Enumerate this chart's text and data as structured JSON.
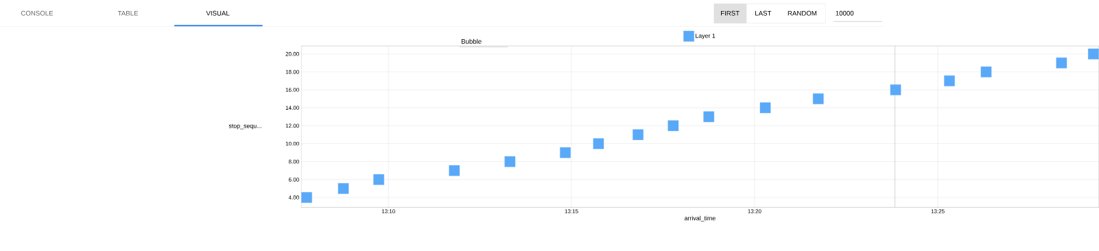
{
  "chart_data": {
    "type": "scatter",
    "xlabel": "arrival_time",
    "ylabel": "stop_sequ...",
    "annotations": [
      "CONSOLE",
      "TABLE",
      "VISUAL",
      "FIRST",
      "LAST",
      "RANDOM",
      "10000",
      "Bubble"
    ],
    "x": [
      13.1295,
      13.1462,
      13.1623,
      13.1967,
      13.222,
      13.2472,
      13.2623,
      13.2803,
      13.2963,
      13.3125,
      13.3382,
      13.3623,
      13.3975,
      13.422,
      13.4387,
      13.473,
      13.4875
    ],
    "series": [
      {
        "name": "Layer 1",
        "color": "#5aa9f8",
        "values": [
          4,
          5,
          6,
          7,
          8,
          9,
          10,
          11,
          12,
          13,
          14,
          15,
          16,
          17,
          18,
          19,
          20
        ]
      }
    ],
    "xlim": [
      13.127,
      13.49
    ],
    "ylim": [
      2.9,
      20.9
    ],
    "xticks": [
      {
        "value": 13.1667,
        "label": "13:10"
      },
      {
        "value": 13.25,
        "label": "13:15"
      },
      {
        "value": 13.3333,
        "label": "13:20"
      },
      {
        "value": 13.4167,
        "label": "13:25"
      }
    ],
    "yticks": [
      {
        "value": 4,
        "label": "4.00"
      },
      {
        "value": 6,
        "label": "6.00"
      },
      {
        "value": 8,
        "label": "8.00"
      },
      {
        "value": 10,
        "label": "10.00"
      },
      {
        "value": 12,
        "label": "12.00"
      },
      {
        "value": 14,
        "label": "14.00"
      },
      {
        "value": 16,
        "label": "16.00"
      },
      {
        "value": 18,
        "label": "18.00"
      },
      {
        "value": 20,
        "label": "20.00"
      }
    ],
    "ref_lines": [
      {
        "axis": "x",
        "value": 13.3972,
        "color": "#333333"
      }
    ],
    "grid": true,
    "legend": "top",
    "marker": "square"
  }
}
